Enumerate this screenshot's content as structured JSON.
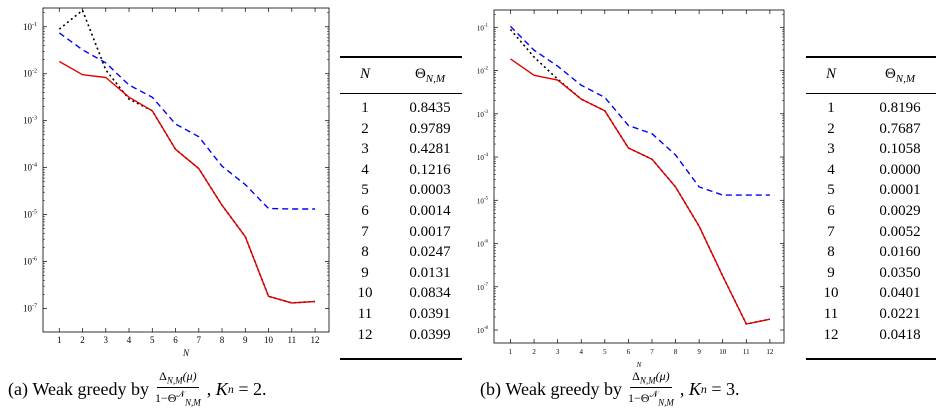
{
  "chart_data": [
    {
      "type": "line",
      "subfigure": "(a)",
      "xlabel": "N",
      "ylabel": "",
      "y_scale": "log",
      "xlim": [
        0.3,
        12.6
      ],
      "ylim_exp": [
        -7.5,
        -0.6
      ],
      "x": [
        1,
        2,
        3,
        4,
        5,
        6,
        7,
        8,
        9,
        10,
        11,
        12
      ],
      "x_ticks": [
        "1",
        "2",
        "3",
        "4",
        "5",
        "6",
        "7",
        "8",
        "9",
        "10",
        "11",
        "12"
      ],
      "y_ticks": [
        {
          "base": "10",
          "exp": "-1",
          "value": -1
        },
        {
          "base": "10",
          "exp": "-2",
          "value": -2
        },
        {
          "base": "10",
          "exp": "-3",
          "value": -3
        },
        {
          "base": "10",
          "exp": "-4",
          "value": -4
        },
        {
          "base": "10",
          "exp": "-5",
          "value": -5
        },
        {
          "base": "10",
          "exp": "-6",
          "value": -6
        },
        {
          "base": "10",
          "exp": "-7",
          "value": -7
        }
      ],
      "series": [
        {
          "style": "dashed",
          "color": "#0000ff",
          "log10_values": [
            -1.13,
            -1.49,
            -1.77,
            -2.24,
            -2.5,
            -3.07,
            -3.34,
            -3.97,
            -4.36,
            -4.87,
            -4.88,
            -4.88
          ]
        },
        {
          "style": "dotted",
          "color": "#000000",
          "log10_values": [
            -1.05,
            -0.65,
            -1.92,
            -2.54,
            -2.79,
            -3.61,
            -4.02,
            -4.8,
            -5.47,
            -6.74,
            -6.88,
            -6.85
          ]
        },
        {
          "style": "solid",
          "color": "#e00000",
          "log10_values": [
            -1.74,
            -2.02,
            -2.08,
            -2.5,
            -2.79,
            -3.61,
            -4.02,
            -4.8,
            -5.47,
            -6.74,
            -6.88,
            -6.85
          ]
        }
      ]
    },
    {
      "type": "line",
      "subfigure": "(b)",
      "xlabel": "N",
      "ylabel": "",
      "y_scale": "log",
      "xlim": [
        0.3,
        12.6
      ],
      "ylim_exp": [
        -8.3,
        -0.6
      ],
      "x": [
        1,
        2,
        3,
        4,
        5,
        6,
        7,
        8,
        9,
        10,
        11,
        12
      ],
      "x_ticks": [
        "1",
        "2",
        "3",
        "4",
        "5",
        "6",
        "7",
        "8",
        "9",
        "10",
        "11",
        "12"
      ],
      "y_ticks": [
        {
          "base": "10",
          "exp": "-1",
          "value": -1
        },
        {
          "base": "10",
          "exp": "-2",
          "value": -2
        },
        {
          "base": "10",
          "exp": "-3",
          "value": -3
        },
        {
          "base": "10",
          "exp": "-4",
          "value": -4
        },
        {
          "base": "10",
          "exp": "-5",
          "value": -5
        },
        {
          "base": "10",
          "exp": "-6",
          "value": -6
        },
        {
          "base": "10",
          "exp": "-7",
          "value": -7
        },
        {
          "base": "10",
          "exp": "-8",
          "value": -8
        }
      ],
      "series": [
        {
          "style": "dashed",
          "color": "#0000ff",
          "log10_values": [
            -0.98,
            -1.53,
            -1.9,
            -2.34,
            -2.62,
            -3.27,
            -3.46,
            -3.95,
            -4.69,
            -4.88,
            -4.88,
            -4.88
          ]
        },
        {
          "style": "dotted",
          "color": "#000000",
          "log10_values": [
            -1.05,
            -1.69,
            -2.2,
            -2.66,
            -2.93,
            -3.79,
            -4.05,
            -4.69,
            -5.6,
            -6.75,
            -7.86,
            -7.75
          ]
        },
        {
          "style": "solid",
          "color": "#e00000",
          "log10_values": [
            -1.73,
            -2.11,
            -2.22,
            -2.66,
            -2.93,
            -3.79,
            -4.05,
            -4.69,
            -5.6,
            -6.75,
            -7.86,
            -7.75
          ]
        }
      ]
    }
  ],
  "tables": [
    {
      "header_n": "N",
      "header_theta": "Θ",
      "header_theta_sub": "N,M",
      "rows": [
        [
          "1",
          "0.8435"
        ],
        [
          "2",
          "0.9789"
        ],
        [
          "3",
          "0.4281"
        ],
        [
          "4",
          "0.1216"
        ],
        [
          "5",
          "0.0003"
        ],
        [
          "6",
          "0.0014"
        ],
        [
          "7",
          "0.0017"
        ],
        [
          "8",
          "0.0247"
        ],
        [
          "9",
          "0.0131"
        ],
        [
          "10",
          "0.0834"
        ],
        [
          "11",
          "0.0391"
        ],
        [
          "12",
          "0.0399"
        ]
      ]
    },
    {
      "header_n": "N",
      "header_theta": "Θ",
      "header_theta_sub": "N,M",
      "rows": [
        [
          "1",
          "0.8196"
        ],
        [
          "2",
          "0.7687"
        ],
        [
          "3",
          "0.1058"
        ],
        [
          "4",
          "0.0000"
        ],
        [
          "5",
          "0.0001"
        ],
        [
          "6",
          "0.0029"
        ],
        [
          "7",
          "0.0052"
        ],
        [
          "8",
          "0.0160"
        ],
        [
          "9",
          "0.0350"
        ],
        [
          "10",
          "0.0401"
        ],
        [
          "11",
          "0.0221"
        ],
        [
          "12",
          "0.0418"
        ]
      ]
    }
  ],
  "captions": [
    {
      "label": "(a)",
      "prefix": "Weak greedy by",
      "num": "Δ",
      "num_sub": "N,M",
      "num_tail": "(μ)",
      "den": "1−Θ",
      "den_sup": "𝒩",
      "den_sub": "N,M",
      "suffix_var": "K",
      "suffix_sub": "n",
      "suffix_tail": " = 2."
    },
    {
      "label": "(b)",
      "prefix": "Weak greedy by",
      "num": "Δ",
      "num_sub": "N,M",
      "num_tail": "(μ)",
      "den": "1−Θ",
      "den_sup": "𝒩",
      "den_sub": "N,M",
      "suffix_var": "K",
      "suffix_sub": "n",
      "suffix_tail": " = 3."
    }
  ]
}
